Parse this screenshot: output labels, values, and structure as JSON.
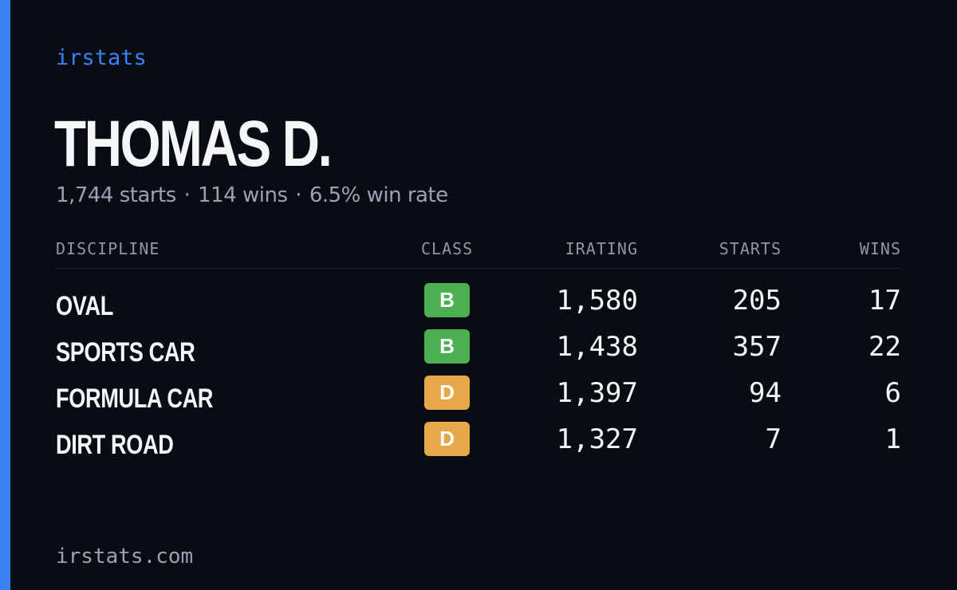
{
  "brand": "irstats",
  "player": {
    "name": "THOMAS D.",
    "starts": "1,744 starts",
    "wins": "114 wins",
    "win_rate": "6.5% win rate",
    "separator": "·"
  },
  "table": {
    "headers": {
      "discipline": "DISCIPLINE",
      "class": "CLASS",
      "irating": "IRATING",
      "starts": "STARTS",
      "wins": "WINS"
    },
    "rows": [
      {
        "discipline": "OVAL",
        "class": "B",
        "class_color": "#4caf50",
        "irating": "1,580",
        "starts": "205",
        "wins": "17"
      },
      {
        "discipline": "SPORTS CAR",
        "class": "B",
        "class_color": "#4caf50",
        "irating": "1,438",
        "starts": "357",
        "wins": "22"
      },
      {
        "discipline": "FORMULA CAR",
        "class": "D",
        "class_color": "#e7a74b",
        "irating": "1,397",
        "starts": "94",
        "wins": "6"
      },
      {
        "discipline": "DIRT ROAD",
        "class": "D",
        "class_color": "#e7a74b",
        "irating": "1,327",
        "starts": "7",
        "wins": "1"
      }
    ]
  },
  "footer": "irstats.com",
  "colors": {
    "accent": "#3b82f6",
    "background": "#0a0c13",
    "class_b": "#4caf50",
    "class_d": "#e7a74b"
  }
}
